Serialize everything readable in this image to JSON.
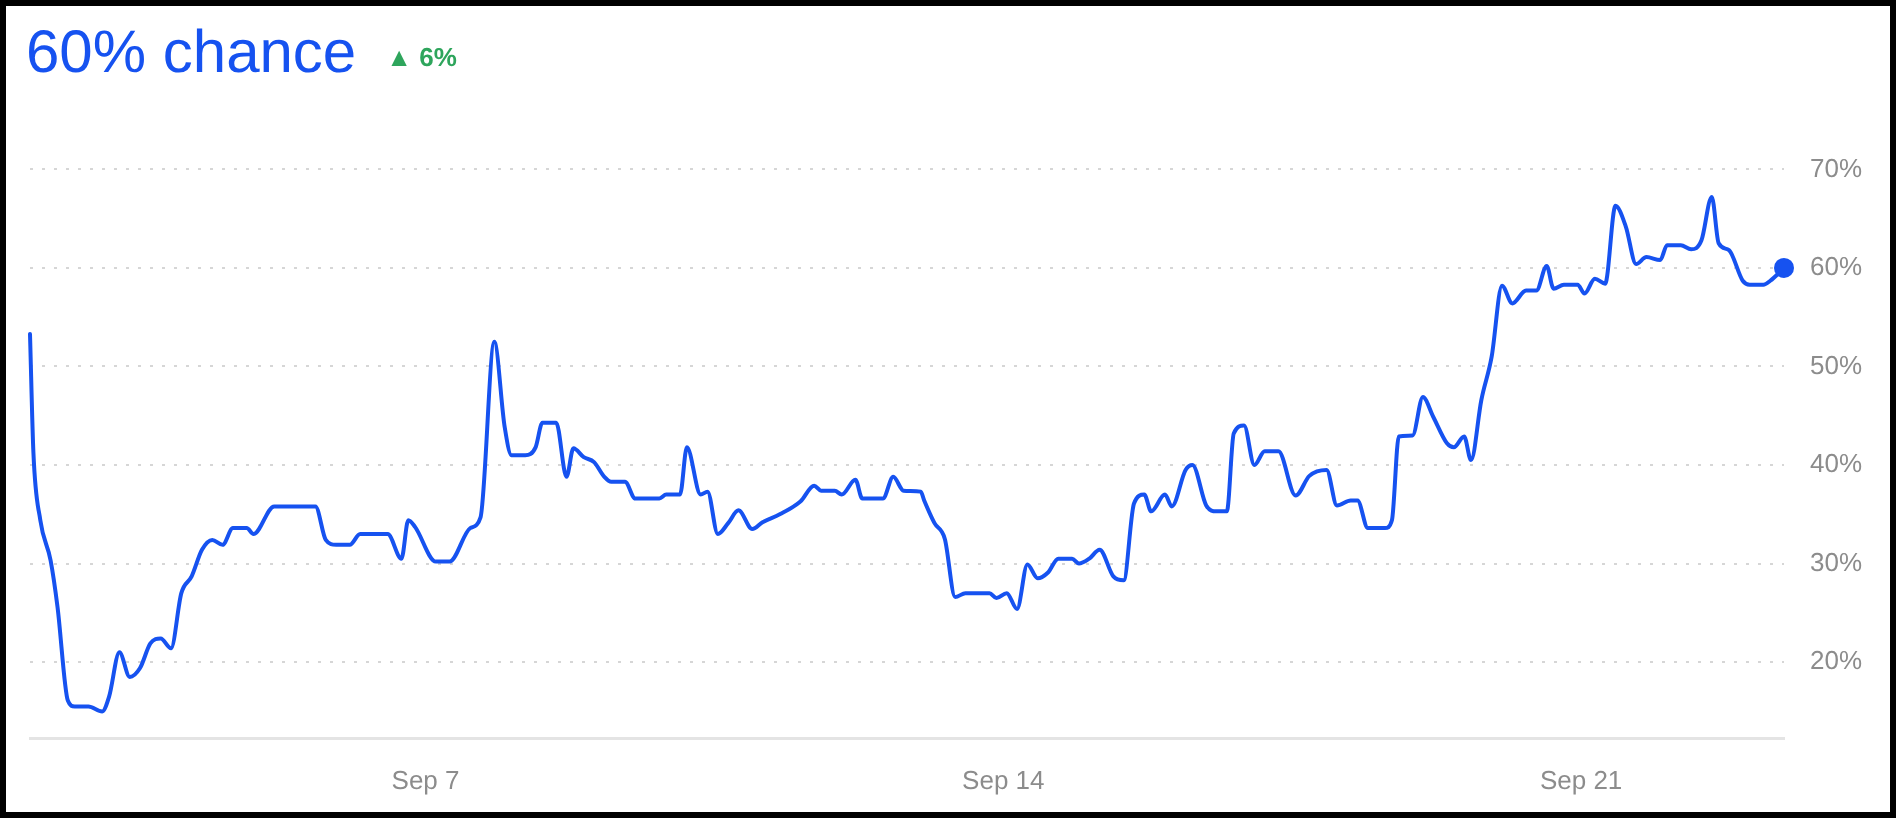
{
  "chart_data": {
    "type": "line",
    "title": "60% chance",
    "subtitle": "▲ 6%",
    "x": [
      "--09-02T05:00",
      "--09-02T06:00",
      "--09-02T08:00",
      "--09-02T11:00",
      "--09-02T13:00",
      "--09-02T16:00",
      "--09-02T18:00",
      "--09-02T22:00",
      "--09-03T02:00",
      "--09-03T04:00",
      "--09-03T07:00",
      "--09-03T10:00",
      "--09-03T13:00",
      "--09-03T16:00",
      "--09-03T19:00",
      "--09-03T22:00",
      "--09-04T01:00",
      "--09-04T04:00",
      "--09-04T07:00",
      "--09-04T10:00",
      "--09-04T13:00",
      "--09-04T16:00",
      "--09-04T20:00",
      "--09-04T22:00",
      "--09-05T04:00",
      "--09-05T16:00",
      "--09-05T19:00",
      "--09-05T22:00",
      "--09-06T02:00",
      "--09-06T05:00",
      "--09-06T13:00",
      "--09-06T17:00",
      "--09-06T19:00",
      "--09-06T21:00",
      "--09-07T03:00",
      "--09-07T07:00",
      "--09-07T13:00",
      "--09-07T16:00",
      "--09-07T20:00",
      "--09-07T23:00",
      "--09-08T01:00",
      "--09-08T05:00",
      "--09-08T08:00",
      "--09-08T10:00",
      "--09-08T14:00",
      "--09-08T17:00",
      "--09-08T19:00",
      "--09-08T22:00",
      "--09-09T01:00",
      "--09-09T04:00",
      "--09-09T06:00",
      "--09-09T10:00",
      "--09-09T13:00",
      "--09-09T20:00",
      "--09-09T22:00",
      "--09-10T02:00",
      "--09-10T04:00",
      "--09-10T08:00",
      "--09-10T10:00",
      "--09-10T13:00",
      "--09-10T16:00",
      "--09-10T19:00",
      "--09-10T23:00",
      "--09-11T02:00",
      "--09-11T07:00",
      "--09-11T13:00",
      "--09-11T17:00",
      "--09-11T19:00",
      "--09-11T23:00",
      "--09-12T01:00",
      "--09-12T05:00",
      "--09-12T07:00",
      "--09-12T13:00",
      "--09-12T16:00",
      "--09-12T19:00",
      "--09-13T00:00",
      "--09-13T01:00",
      "--09-13T04:00",
      "--09-13T07:00",
      "--09-13T10:00",
      "--09-13T13:00",
      "--09-13T20:00",
      "--09-13T22:00",
      "--09-14T01:00",
      "--09-14T04:00",
      "--09-14T07:00",
      "--09-14T10:00",
      "--09-14T13:00",
      "--09-14T16:00",
      "--09-14T20:00",
      "--09-14T22:00",
      "--09-15T01:00",
      "--09-15T04:00",
      "--09-15T08:00",
      "--09-15T11:00",
      "--09-15T14:00",
      "--09-15T17:00",
      "--09-15T19:00",
      "--09-15T23:00",
      "--09-16T01:00",
      "--09-16T05:00",
      "--09-16T07:00",
      "--09-16T11:00",
      "--09-16T14:00",
      "--09-16T17:00",
      "--09-16T19:00",
      "--09-16T22:00",
      "--09-17T01:00",
      "--09-17T04:00",
      "--09-17T08:00",
      "--09-17T13:00",
      "--09-17T17:00",
      "--09-17T22:00",
      "--09-18T01:00",
      "--09-18T05:00",
      "--09-18T07:00",
      "--09-18T10:00",
      "--09-18T15:00",
      "--09-18T17:00",
      "--09-18T19:00",
      "--09-18T23:00",
      "--09-19T02:00",
      "--09-19T05:00",
      "--09-19T09:00",
      "--09-19T11:00",
      "--09-19T14:00",
      "--09-19T16:00",
      "--09-19T19:00",
      "--09-19T22:00",
      "--09-20T01:00",
      "--09-20T04:00",
      "--09-20T08:00",
      "--09-20T11:00",
      "--09-20T14:00",
      "--09-20T16:00",
      "--09-20T19:00",
      "--09-20T23:00",
      "--09-21T01:00",
      "--09-21T04:00",
      "--09-21T07:00",
      "--09-21T10:00",
      "--09-21T13:00",
      "--09-21T16:00",
      "--09-21T19:00",
      "--09-21T23:00",
      "--09-22T01:00",
      "--09-22T05:00",
      "--09-22T08:00",
      "--09-22T11:00",
      "--09-22T14:00",
      "--09-22T16:00",
      "--09-22T19:00",
      "--09-22T23:00",
      "--09-23T01:00",
      "--09-23T05:00",
      "--09-23T07:00",
      "--09-23T11:00"
    ],
    "series": [
      {
        "color": "#1652f0",
        "values": [
          53.3,
          41.2,
          34.4,
          30.3,
          25.6,
          16.1,
          15.5,
          15.5,
          15.0,
          16.5,
          21.0,
          18.5,
          19.4,
          21.9,
          22.4,
          21.4,
          27.0,
          28.7,
          31.4,
          32.4,
          31.9,
          33.6,
          33.6,
          33.0,
          35.8,
          35.8,
          32.4,
          31.9,
          31.9,
          33.0,
          33.0,
          30.5,
          34.4,
          33.7,
          30.2,
          30.2,
          33.6,
          34.7,
          52.5,
          43.9,
          41.0,
          41.0,
          41.8,
          44.3,
          44.3,
          38.8,
          41.7,
          40.8,
          40.3,
          38.8,
          38.3,
          38.3,
          36.6,
          36.6,
          37.0,
          37.0,
          41.8,
          37.0,
          37.3,
          33.0,
          34.1,
          35.4,
          33.5,
          34.2,
          35.0,
          36.3,
          37.9,
          37.4,
          37.4,
          37.0,
          38.5,
          36.6,
          36.6,
          38.8,
          37.4,
          37.3,
          36.4,
          34.1,
          32.5,
          26.6,
          27.0,
          27.0,
          26.5,
          27.0,
          25.4,
          29.9,
          28.5,
          29.1,
          30.5,
          30.5,
          30.0,
          30.5,
          31.4,
          28.7,
          28.3,
          36.1,
          37.0,
          35.3,
          37.0,
          35.8,
          39.5,
          40.0,
          35.9,
          35.3,
          35.3,
          43.2,
          44.0,
          40.0,
          41.4,
          41.4,
          36.9,
          38.9,
          39.5,
          35.9,
          36.4,
          36.4,
          33.6,
          33.6,
          34.4,
          42.9,
          43.0,
          46.9,
          44.9,
          42.2,
          41.8,
          42.9,
          40.5,
          46.6,
          51.0,
          58.2,
          56.4,
          57.7,
          57.7,
          60.2,
          57.9,
          58.3,
          58.3,
          57.4,
          58.9,
          58.4,
          66.3,
          64.2,
          60.4,
          61.1,
          60.8,
          62.3,
          62.3,
          61.9,
          62.8,
          67.2,
          62.5,
          61.8,
          58.7,
          58.3,
          58.3,
          58.7,
          60.0
        ]
      },
      {
        "type": "scatter",
        "marker": "circle",
        "color": "#1652f0",
        "x": [
          "--09-23T11:00"
        ],
        "values": [
          60.0
        ]
      }
    ],
    "xlim": [
      "--09-02T05:00",
      "--09-23T11:00"
    ],
    "xticks": [
      {
        "value": "--09-07",
        "label": "Sep 7"
      },
      {
        "value": "--09-14",
        "label": "Sep 14"
      },
      {
        "value": "--09-21",
        "label": "Sep 21"
      }
    ],
    "ylim": [
      12.3,
      70
    ],
    "yticks": [
      {
        "value": 20,
        "label": "20%"
      },
      {
        "value": 30,
        "label": "30%"
      },
      {
        "value": 40,
        "label": "40%"
      },
      {
        "value": 50,
        "label": "50%"
      },
      {
        "value": 60,
        "label": "60%"
      },
      {
        "value": 70,
        "label": "70%"
      }
    ],
    "grid": "y"
  }
}
